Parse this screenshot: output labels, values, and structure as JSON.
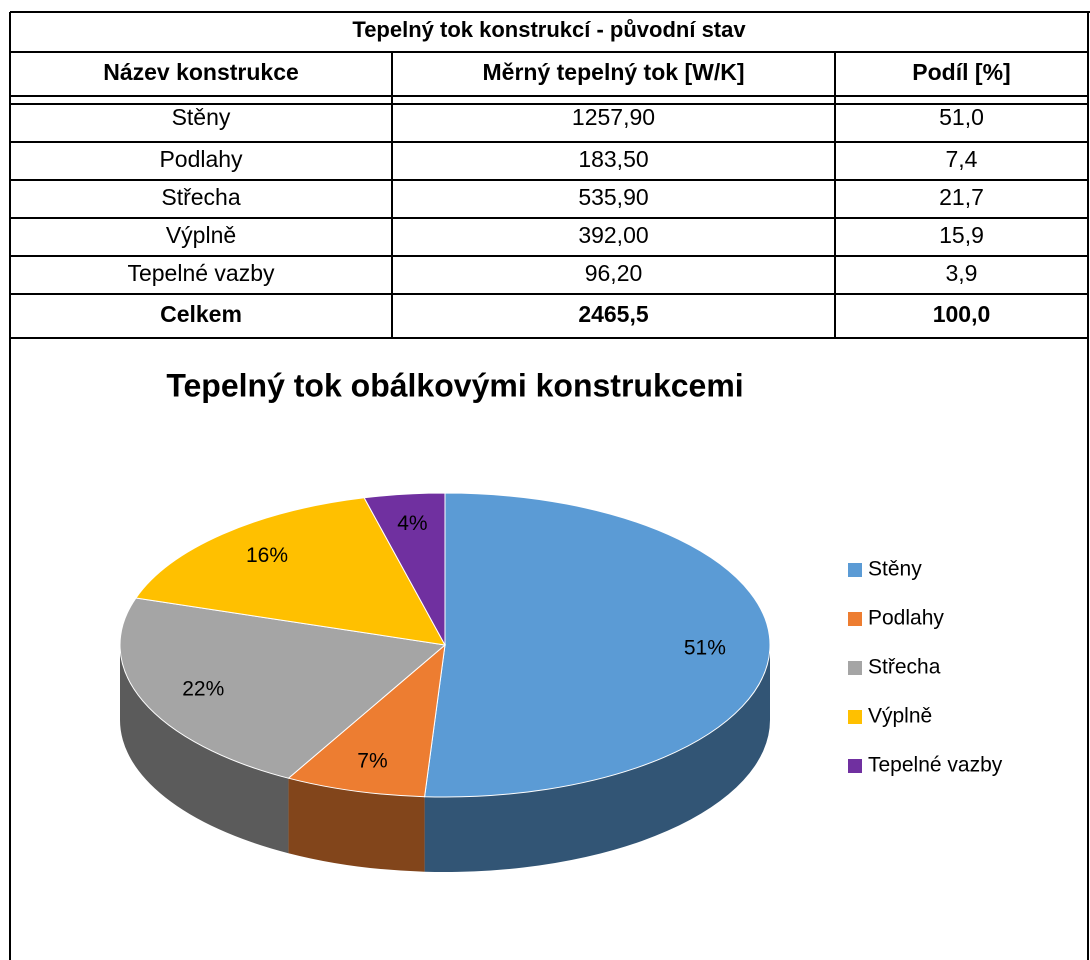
{
  "table": {
    "title": "Tepelný tok konstrukcí - původní stav",
    "headers": [
      "Název konstrukce",
      "Měrný tepelný tok [W/K]",
      "Podíl [%]"
    ],
    "rows": [
      [
        "Stěny",
        "1257,90",
        "51,0"
      ],
      [
        "Podlahy",
        "183,50",
        "7,4"
      ],
      [
        "Střecha",
        "535,90",
        "21,7"
      ],
      [
        "Výplně",
        "392,00",
        "15,9"
      ],
      [
        "Tepelné vazby",
        "96,20",
        "3,9"
      ]
    ],
    "total": [
      "Celkem",
      "2465,5",
      "100,0"
    ]
  },
  "chart_data": {
    "type": "pie",
    "title": "Tepelný tok obálkovými konstrukcemi",
    "categories": [
      "Stěny",
      "Podlahy",
      "Střecha",
      "Výplně",
      "Tepelné vazby"
    ],
    "values": [
      51,
      7,
      22,
      16,
      4
    ],
    "value_labels": [
      "51%",
      "7%",
      "22%",
      "16%",
      "4%"
    ],
    "colors": [
      "#5b9bd5",
      "#ed7d31",
      "#a5a5a5",
      "#ffc000",
      "#7030a0"
    ],
    "legend": "right"
  }
}
